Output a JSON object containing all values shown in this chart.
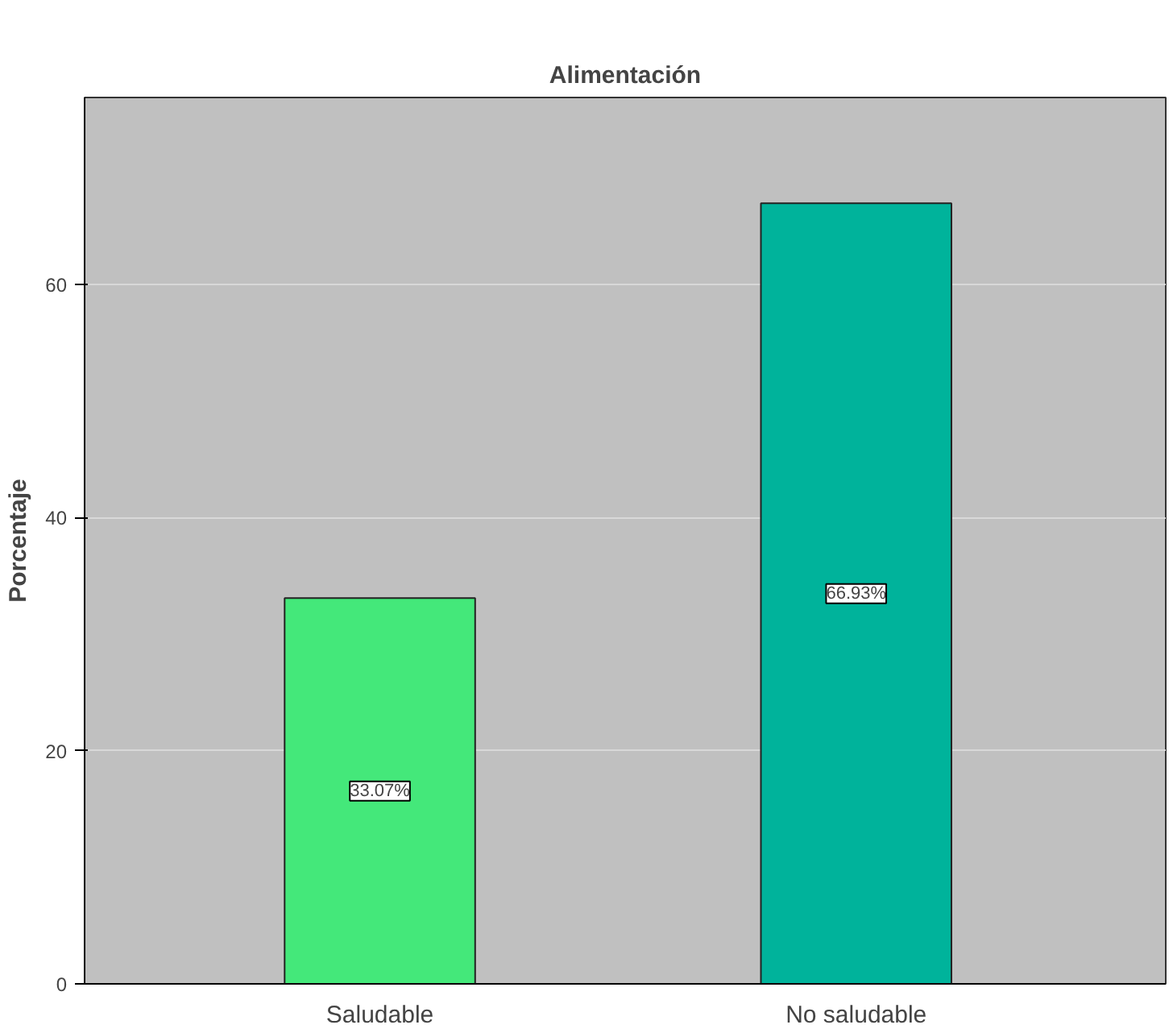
{
  "chart_data": {
    "type": "bar",
    "title": "Alimentación",
    "ylabel": "Porcentaje",
    "categories": [
      "Saludable",
      "No saludable"
    ],
    "values": [
      33.07,
      66.93
    ],
    "colors": [
      "#44e87a",
      "#00b39b"
    ],
    "value_labels": [
      "33.07%",
      "66.93%"
    ],
    "ylim": [
      0,
      76
    ],
    "yticks": [
      0,
      20,
      40,
      60
    ],
    "grid": "y"
  }
}
